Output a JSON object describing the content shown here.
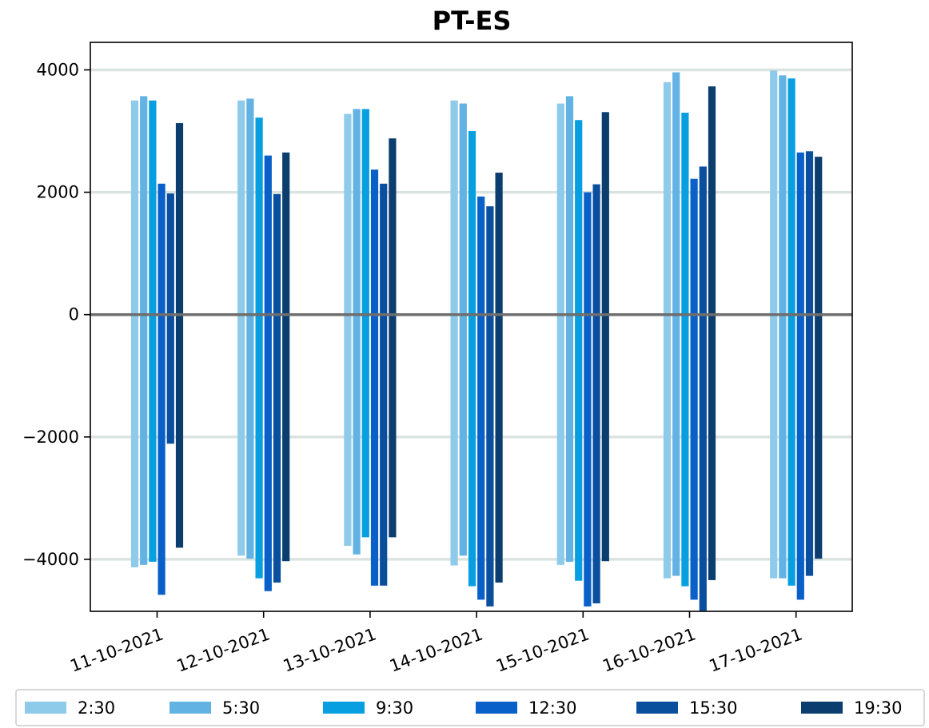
{
  "chart_data": {
    "type": "bar",
    "title": "PT-ES",
    "xlabel": "",
    "ylabel": "",
    "categories": [
      "11-10-2021",
      "12-10-2021",
      "13-10-2021",
      "14-10-2021",
      "15-10-2021",
      "16-10-2021",
      "17-10-2021"
    ],
    "ylim": [
      -4850,
      4450
    ],
    "yticks": [
      4000,
      2000,
      0,
      -2000,
      -4000
    ],
    "ytick_labels": [
      "4000",
      "2000",
      "0",
      "−2000",
      "−4000"
    ],
    "grid": "horizontal",
    "zero_line": true,
    "legend_position": "bottom",
    "series": [
      {
        "name": "2:30",
        "color": "#8ecae9",
        "positive": [
          3500,
          3500,
          3280,
          3500,
          3450,
          3800,
          3990
        ],
        "negative": [
          -4130,
          -3940,
          -3780,
          -4100,
          -4090,
          -4310,
          -4310
        ]
      },
      {
        "name": "5:30",
        "color": "#62b3e4",
        "positive": [
          3570,
          3530,
          3360,
          3450,
          3570,
          3960,
          3910
        ],
        "negative": [
          -4090,
          -3990,
          -3920,
          -3940,
          -4040,
          -4270,
          -4310
        ]
      },
      {
        "name": "9:30",
        "color": "#079fe0",
        "positive": [
          3500,
          3220,
          3360,
          3000,
          3180,
          3300,
          3860
        ],
        "negative": [
          -4040,
          -4310,
          -3640,
          -4440,
          -4350,
          -4440,
          -4430
        ]
      },
      {
        "name": "12:30",
        "color": "#0860c8",
        "positive": [
          2140,
          2600,
          2370,
          1930,
          2000,
          2220,
          2650
        ],
        "negative": [
          -4580,
          -4520,
          -4430,
          -4660,
          -4770,
          -4660,
          -4660
        ]
      },
      {
        "name": "15:30",
        "color": "#0a4e9e",
        "positive": [
          1980,
          1970,
          2140,
          1770,
          2130,
          2420,
          2670
        ],
        "negative": [
          -2110,
          -4380,
          -4430,
          -4770,
          -4720,
          -4840,
          -4270
        ]
      },
      {
        "name": "19:30",
        "color": "#0b3d6e",
        "positive": [
          3130,
          2650,
          2880,
          2320,
          3310,
          3730,
          2580
        ],
        "negative": [
          -3810,
          -4030,
          -3640,
          -4380,
          -4030,
          -4340,
          -3990
        ]
      }
    ]
  }
}
